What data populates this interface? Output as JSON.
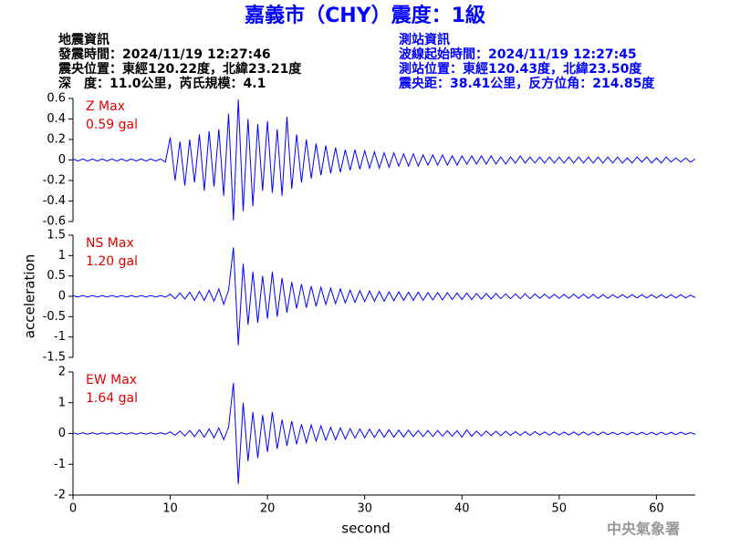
{
  "header": {
    "title": "嘉義市（CHY）震度：1級",
    "left": [
      "地震資訊",
      "發震時間：2024/11/19 12:27:46",
      "震央位置：東經120.22度，北緯23.21度",
      "深　度：11.0公里，芮氏規模：4.1"
    ],
    "right": [
      "測站資訊",
      "波線起始時間：2024/11/19 12:27:45",
      "測站位置：東經120.43度，北緯23.50度",
      "震央距：38.41公里，反方位角：214.85度"
    ]
  },
  "chart_data": [
    {
      "type": "line",
      "label": "Z Max",
      "max_label": "0.59 gal",
      "xlim": [
        0,
        64
      ],
      "ylim": [
        -0.6,
        0.6
      ],
      "yticks": [
        -0.6,
        -0.4,
        -0.2,
        0,
        0.2,
        0.4,
        0.6
      ],
      "x": [
        0,
        0.5,
        1,
        1.5,
        2,
        2.5,
        3,
        3.5,
        4,
        4.5,
        5,
        5.5,
        6,
        6.5,
        7,
        7.5,
        8,
        8.5,
        9,
        9.5,
        10,
        10.5,
        11,
        11.5,
        12,
        12.5,
        13,
        13.5,
        14,
        14.5,
        15,
        15.5,
        16,
        16.5,
        17,
        17.5,
        18,
        18.5,
        19,
        19.5,
        20,
        20.5,
        21,
        21.5,
        22,
        22.5,
        23,
        23.5,
        24,
        24.5,
        25,
        25.5,
        26,
        26.5,
        27,
        27.5,
        28,
        28.5,
        29,
        29.5,
        30,
        30.5,
        31,
        31.5,
        32,
        32.5,
        33,
        33.5,
        34,
        34.5,
        35,
        35.5,
        36,
        36.5,
        37,
        37.5,
        38,
        38.5,
        39,
        39.5,
        40,
        40.5,
        41,
        41.5,
        42,
        42.5,
        43,
        43.5,
        44,
        44.5,
        45,
        45.5,
        46,
        46.5,
        47,
        47.5,
        48,
        48.5,
        49,
        49.5,
        50,
        50.5,
        51,
        51.5,
        52,
        52.5,
        53,
        53.5,
        54,
        54.5,
        55,
        55.5,
        56,
        56.5,
        57,
        57.5,
        58,
        58.5,
        59,
        59.5,
        60,
        60.5,
        61,
        61.5,
        62,
        62.5,
        63,
        63.5,
        64
      ],
      "series": [
        {
          "color": "#0000ff",
          "values": [
            0.01,
            -0.01,
            0.01,
            -0.01,
            0.01,
            -0.01,
            0.01,
            -0.01,
            0.01,
            -0.01,
            0.01,
            -0.01,
            0.01,
            -0.01,
            0.01,
            -0.01,
            0.01,
            -0.01,
            0.01,
            -0.02,
            0.22,
            -0.2,
            0.18,
            -0.25,
            0.2,
            -0.22,
            0.25,
            -0.3,
            0.28,
            -0.26,
            0.3,
            -0.35,
            0.45,
            -0.59,
            0.59,
            -0.5,
            0.4,
            -0.45,
            0.35,
            -0.3,
            0.38,
            -0.32,
            0.3,
            -0.35,
            0.42,
            -0.28,
            0.25,
            -0.22,
            0.2,
            -0.18,
            0.16,
            -0.15,
            0.14,
            -0.13,
            0.12,
            -0.12,
            0.1,
            -0.1,
            0.1,
            -0.09,
            0.09,
            -0.08,
            0.08,
            -0.08,
            0.07,
            -0.07,
            0.07,
            -0.06,
            0.06,
            -0.06,
            0.06,
            -0.06,
            0.05,
            -0.05,
            0.05,
            -0.05,
            0.05,
            -0.05,
            0.04,
            -0.05,
            0.04,
            -0.04,
            0.04,
            -0.04,
            0.04,
            -0.04,
            0.04,
            -0.04,
            0.03,
            -0.04,
            0.03,
            -0.03,
            0.04,
            -0.03,
            0.03,
            -0.03,
            0.03,
            -0.03,
            0.03,
            -0.03,
            0.03,
            -0.03,
            0.03,
            -0.03,
            0.03,
            -0.03,
            0.03,
            -0.03,
            0.03,
            -0.03,
            0.03,
            -0.03,
            0.03,
            -0.03,
            0.02,
            -0.03,
            0.03,
            -0.02,
            0.03,
            -0.03,
            0.02,
            -0.03,
            0.03,
            -0.02,
            0.02,
            -0.02,
            0.02,
            -0.02,
            0.01
          ]
        }
      ]
    },
    {
      "type": "line",
      "label": "NS Max",
      "max_label": "1.20 gal",
      "ylabel": "acceleration",
      "xlim": [
        0,
        64
      ],
      "ylim": [
        -1.5,
        1.5
      ],
      "yticks": [
        -1.5,
        -1,
        -0.5,
        0,
        0.5,
        1,
        1.5
      ],
      "x": [
        0,
        0.5,
        1,
        1.5,
        2,
        2.5,
        3,
        3.5,
        4,
        4.5,
        5,
        5.5,
        6,
        6.5,
        7,
        7.5,
        8,
        8.5,
        9,
        9.5,
        10,
        10.5,
        11,
        11.5,
        12,
        12.5,
        13,
        13.5,
        14,
        14.5,
        15,
        15.5,
        16,
        16.5,
        17,
        17.5,
        18,
        18.5,
        19,
        19.5,
        20,
        20.5,
        21,
        21.5,
        22,
        22.5,
        23,
        23.5,
        24,
        24.5,
        25,
        25.5,
        26,
        26.5,
        27,
        27.5,
        28,
        28.5,
        29,
        29.5,
        30,
        30.5,
        31,
        31.5,
        32,
        32.5,
        33,
        33.5,
        34,
        34.5,
        35,
        35.5,
        36,
        36.5,
        37,
        37.5,
        38,
        38.5,
        39,
        39.5,
        40,
        40.5,
        41,
        41.5,
        42,
        42.5,
        43,
        43.5,
        44,
        44.5,
        45,
        45.5,
        46,
        46.5,
        47,
        47.5,
        48,
        48.5,
        49,
        49.5,
        50,
        50.5,
        51,
        51.5,
        52,
        52.5,
        53,
        53.5,
        54,
        54.5,
        55,
        55.5,
        56,
        56.5,
        57,
        57.5,
        58,
        58.5,
        59,
        59.5,
        60,
        60.5,
        61,
        61.5,
        62,
        62.5,
        63,
        63.5,
        64
      ],
      "series": [
        {
          "color": "#0000ff",
          "values": [
            0.02,
            -0.02,
            0.02,
            -0.02,
            0.02,
            -0.02,
            0.02,
            -0.02,
            0.02,
            -0.02,
            0.02,
            -0.02,
            0.02,
            -0.02,
            0.02,
            -0.02,
            0.02,
            -0.02,
            0.02,
            -0.02,
            0.05,
            -0.06,
            0.08,
            -0.07,
            0.1,
            -0.1,
            0.12,
            -0.1,
            0.15,
            -0.12,
            0.18,
            -0.2,
            0.15,
            1.2,
            -1.2,
            0.8,
            -0.7,
            0.6,
            -0.65,
            0.5,
            -0.55,
            0.6,
            -0.5,
            0.45,
            -0.4,
            0.35,
            -0.3,
            0.3,
            -0.28,
            0.25,
            -0.25,
            0.22,
            -0.2,
            0.2,
            -0.18,
            0.18,
            -0.16,
            0.15,
            -0.15,
            0.14,
            -0.13,
            0.13,
            -0.12,
            0.12,
            -0.12,
            0.11,
            -0.11,
            0.11,
            -0.1,
            0.1,
            -0.1,
            0.1,
            -0.1,
            0.09,
            -0.09,
            0.09,
            -0.09,
            0.09,
            -0.08,
            0.08,
            -0.08,
            0.08,
            -0.08,
            0.07,
            -0.07,
            0.07,
            -0.07,
            0.07,
            -0.06,
            0.06,
            -0.06,
            0.06,
            -0.06,
            0.06,
            -0.06,
            0.06,
            -0.05,
            0.05,
            -0.05,
            0.05,
            -0.05,
            0.05,
            -0.05,
            0.05,
            -0.05,
            0.05,
            -0.05,
            0.05,
            -0.05,
            0.04,
            -0.05,
            0.04,
            -0.04,
            0.04,
            -0.04,
            0.04,
            -0.04,
            0.04,
            -0.04,
            0.04,
            -0.04,
            0.04,
            -0.04,
            0.04,
            -0.04,
            0.04,
            -0.04,
            0.03,
            -0.03
          ]
        }
      ]
    },
    {
      "type": "line",
      "label": "EW Max",
      "max_label": "1.64 gal",
      "xlabel": "second",
      "xlim": [
        0,
        64
      ],
      "xticks": [
        0,
        10,
        20,
        30,
        40,
        50,
        60
      ],
      "ylim": [
        -2,
        2
      ],
      "yticks": [
        -2,
        -1,
        0,
        1,
        2
      ],
      "x": [
        0,
        0.5,
        1,
        1.5,
        2,
        2.5,
        3,
        3.5,
        4,
        4.5,
        5,
        5.5,
        6,
        6.5,
        7,
        7.5,
        8,
        8.5,
        9,
        9.5,
        10,
        10.5,
        11,
        11.5,
        12,
        12.5,
        13,
        13.5,
        14,
        14.5,
        15,
        15.5,
        16,
        16.5,
        17,
        17.5,
        18,
        18.5,
        19,
        19.5,
        20,
        20.5,
        21,
        21.5,
        22,
        22.5,
        23,
        23.5,
        24,
        24.5,
        25,
        25.5,
        26,
        26.5,
        27,
        27.5,
        28,
        28.5,
        29,
        29.5,
        30,
        30.5,
        31,
        31.5,
        32,
        32.5,
        33,
        33.5,
        34,
        34.5,
        35,
        35.5,
        36,
        36.5,
        37,
        37.5,
        38,
        38.5,
        39,
        39.5,
        40,
        40.5,
        41,
        41.5,
        42,
        42.5,
        43,
        43.5,
        44,
        44.5,
        45,
        45.5,
        46,
        46.5,
        47,
        47.5,
        48,
        48.5,
        49,
        49.5,
        50,
        50.5,
        51,
        51.5,
        52,
        52.5,
        53,
        53.5,
        54,
        54.5,
        55,
        55.5,
        56,
        56.5,
        57,
        57.5,
        58,
        58.5,
        59,
        59.5,
        60,
        60.5,
        61,
        61.5,
        62,
        62.5,
        63,
        63.5,
        64
      ],
      "series": [
        {
          "color": "#0000ff",
          "values": [
            0.02,
            -0.02,
            0.02,
            -0.02,
            0.02,
            -0.02,
            0.02,
            -0.02,
            0.02,
            -0.02,
            0.02,
            -0.02,
            0.02,
            -0.02,
            0.02,
            -0.02,
            0.02,
            -0.02,
            0.02,
            -0.02,
            0.05,
            -0.06,
            0.08,
            -0.08,
            0.1,
            -0.1,
            0.12,
            -0.12,
            0.15,
            -0.14,
            0.18,
            -0.2,
            0.2,
            1.64,
            -1.64,
            1.0,
            -0.9,
            0.7,
            -0.8,
            0.6,
            -0.6,
            0.7,
            -0.5,
            0.45,
            -0.4,
            0.4,
            -0.35,
            0.3,
            -0.3,
            0.28,
            -0.25,
            0.25,
            -0.22,
            0.2,
            -0.2,
            0.18,
            -0.18,
            0.16,
            -0.15,
            0.15,
            -0.14,
            0.14,
            -0.13,
            0.13,
            -0.12,
            0.12,
            -0.12,
            0.11,
            -0.11,
            0.11,
            -0.1,
            0.1,
            -0.1,
            0.1,
            -0.1,
            0.1,
            -0.09,
            0.09,
            -0.09,
            0.09,
            -0.12,
            0.12,
            -0.09,
            0.08,
            -0.08,
            0.08,
            -0.07,
            0.07,
            -0.07,
            0.07,
            -0.06,
            0.06,
            -0.06,
            0.06,
            -0.06,
            0.06,
            -0.05,
            0.05,
            -0.05,
            0.05,
            -0.05,
            0.05,
            -0.05,
            0.05,
            -0.05,
            0.05,
            -0.05,
            0.05,
            -0.05,
            0.05,
            -0.04,
            0.04,
            -0.04,
            0.04,
            -0.04,
            0.04,
            -0.04,
            0.04,
            -0.04,
            0.04,
            -0.04,
            0.04,
            -0.04,
            0.04,
            -0.04,
            0.04,
            -0.03,
            0.03,
            -0.03
          ]
        }
      ]
    }
  ],
  "footer": "中央氣象署"
}
